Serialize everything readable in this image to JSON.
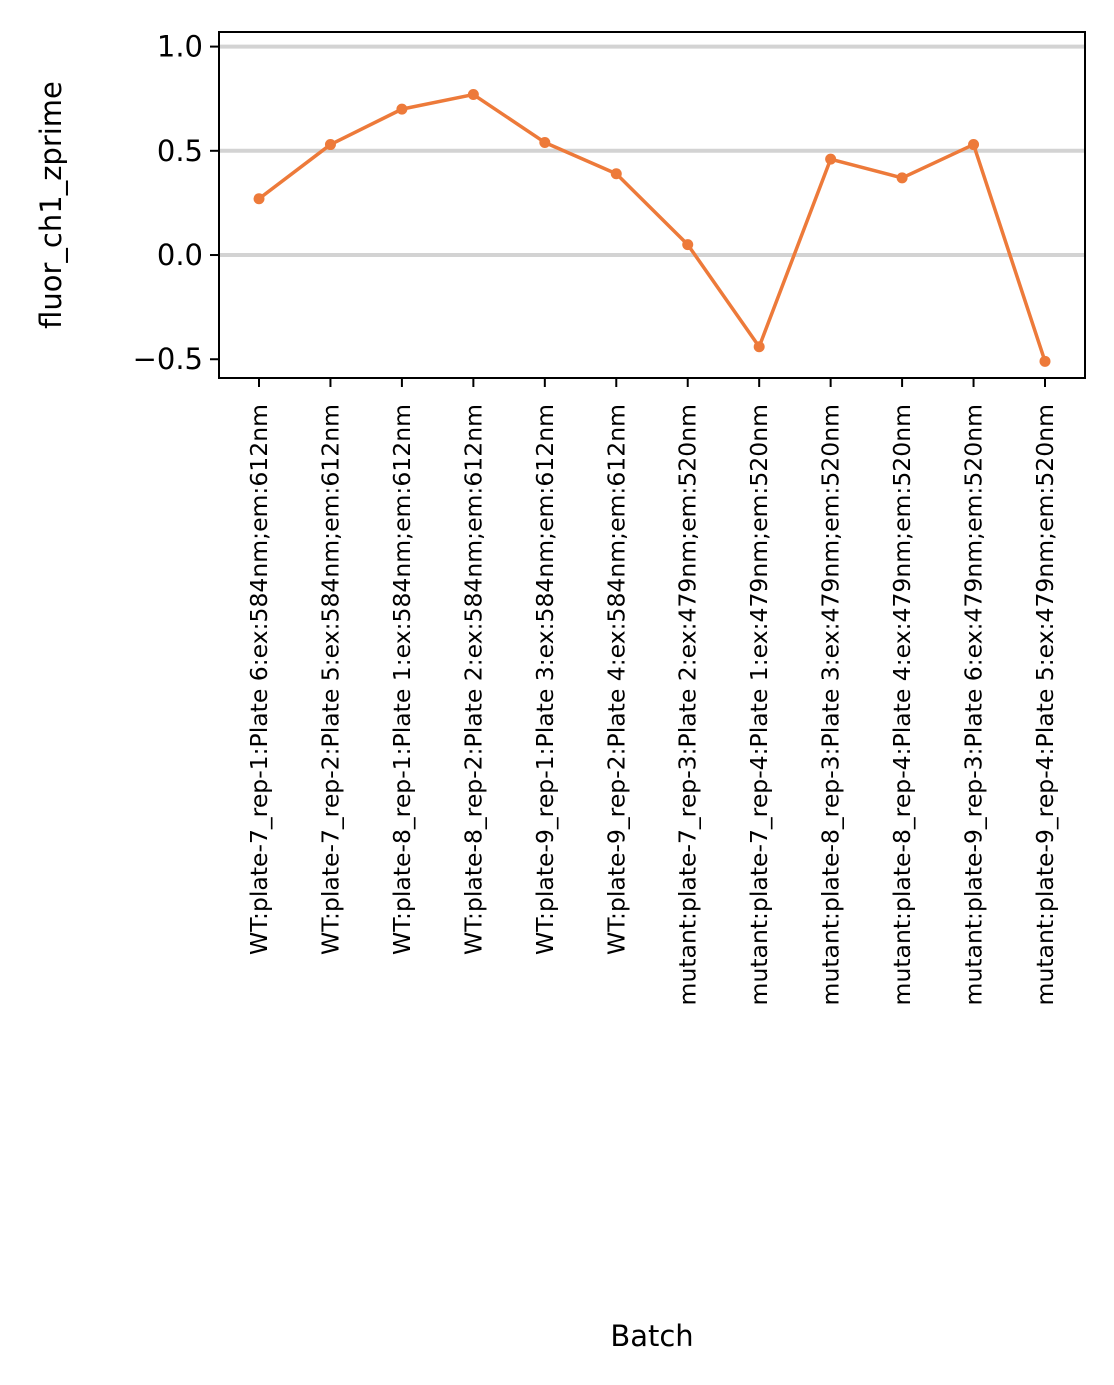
{
  "chart_data": {
    "type": "line",
    "xlabel": "Batch",
    "ylabel": "fluor_ch1_zprime",
    "categories": [
      "WT:plate-7_rep-1:Plate 6:ex:584nm;em:612nm",
      "WT:plate-7_rep-2:Plate 5:ex:584nm;em:612nm",
      "WT:plate-8_rep-1:Plate 1:ex:584nm;em:612nm",
      "WT:plate-8_rep-2:Plate 2:ex:584nm;em:612nm",
      "WT:plate-9_rep-1:Plate 3:ex:584nm;em:612nm",
      "WT:plate-9_rep-2:Plate 4:ex:584nm;em:612nm",
      "mutant:plate-7_rep-3:Plate 2:ex:479nm;em:520nm",
      "mutant:plate-7_rep-4:Plate 1:ex:479nm;em:520nm",
      "mutant:plate-8_rep-3:Plate 3:ex:479nm;em:520nm",
      "mutant:plate-8_rep-4:Plate 4:ex:479nm;em:520nm",
      "mutant:plate-9_rep-3:Plate 6:ex:479nm;em:520nm",
      "mutant:plate-9_rep-4:Plate 5:ex:479nm;em:520nm"
    ],
    "values": [
      0.27,
      0.53,
      0.7,
      0.77,
      0.54,
      0.39,
      0.05,
      -0.44,
      0.46,
      0.37,
      0.53,
      -0.51
    ],
    "ylim": [
      -0.59,
      1.07
    ],
    "yticks": [
      1.0,
      0.5,
      0.0,
      -0.5
    ],
    "ytick_labels": [
      "1.0",
      "0.5",
      "0.0",
      "−0.5"
    ],
    "reference_lines": [
      1.0,
      0.5,
      0.0
    ],
    "line_color": "#ed7a3a",
    "reference_line_color": "#d3d3d3",
    "grid": false,
    "legend": "none"
  }
}
